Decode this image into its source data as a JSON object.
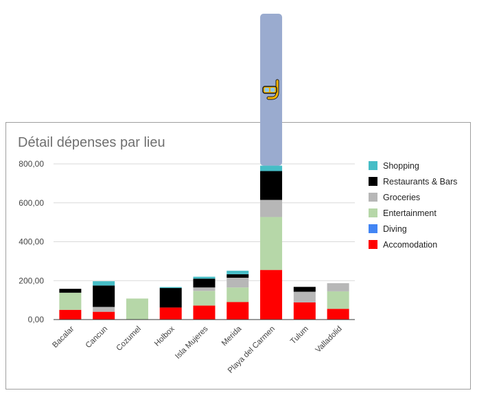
{
  "chart_data": {
    "type": "bar",
    "stacked": true,
    "title": "Détail dépenses par lieu",
    "xlabel": "",
    "ylabel": "",
    "ylim": [
      0,
      800
    ],
    "yticks": [
      "0,00",
      "200,00",
      "400,00",
      "600,00",
      "800,00"
    ],
    "grid": true,
    "legend_position": "right",
    "categories": [
      "Bacalar",
      "Cancun",
      "Cozumel",
      "Holbox",
      "Isla Mujeres",
      "Merida",
      "Playa del Carmen",
      "Tulum",
      "Valladolid"
    ],
    "series": [
      {
        "name": "Accomodation",
        "color": "#ff0000",
        "values": [
          50,
          40,
          0,
          62,
          72,
          90,
          255,
          88,
          55
        ]
      },
      {
        "name": "Diving",
        "color": "#4285f4",
        "values": [
          0,
          0,
          0,
          0,
          0,
          0,
          0,
          0,
          0
        ]
      },
      {
        "name": "Entertainment",
        "color": "#b6d7a8",
        "values": [
          88,
          0,
          108,
          0,
          75,
          75,
          272,
          0,
          90
        ]
      },
      {
        "name": "Groceries",
        "color": "#b7b7b7",
        "values": [
          0,
          25,
          0,
          0,
          18,
          50,
          88,
          55,
          42
        ]
      },
      {
        "name": "Restaurants & Bars",
        "color": "#000000",
        "values": [
          20,
          110,
          0,
          100,
          45,
          18,
          148,
          25,
          0
        ]
      },
      {
        "name": "Shopping",
        "color": "#46bdc6",
        "values": [
          0,
          22,
          0,
          5,
          10,
          18,
          28,
          0,
          0
        ]
      }
    ],
    "overflow_bar": {
      "category": "Playa del Carmen",
      "color": "#9aabcf",
      "icon": "snorkel-mask-icon"
    }
  }
}
